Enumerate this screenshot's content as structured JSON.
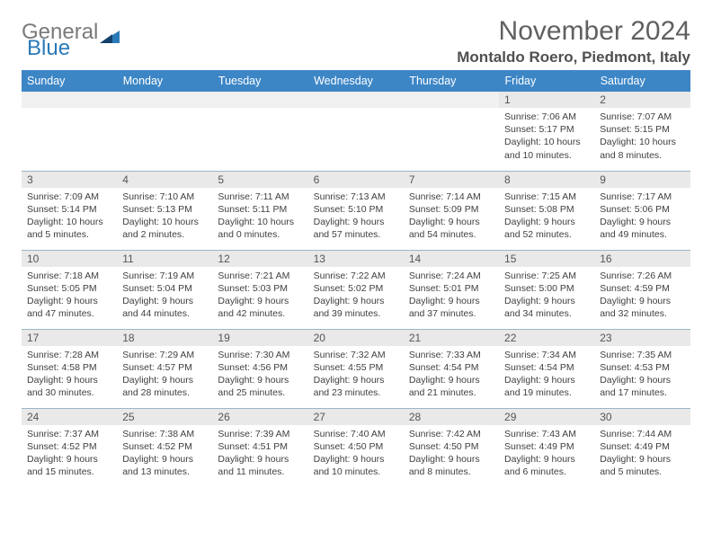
{
  "logo": {
    "line1": "General",
    "line2": "Blue"
  },
  "title": "November 2024",
  "location": "Montaldo Roero, Piedmont, Italy",
  "colors": {
    "header_bg": "#3d86c6",
    "header_text": "#ffffff",
    "daynum_bg": "#e9e9e9",
    "grid_line": "#9bb6c9",
    "logo_gray": "#7a7a7a",
    "logo_blue": "#2a7ab8"
  },
  "weekdays": [
    "Sunday",
    "Monday",
    "Tuesday",
    "Wednesday",
    "Thursday",
    "Friday",
    "Saturday"
  ],
  "weeks": [
    [
      {
        "n": "",
        "sunrise": "",
        "sunset": "",
        "daylight": ""
      },
      {
        "n": "",
        "sunrise": "",
        "sunset": "",
        "daylight": ""
      },
      {
        "n": "",
        "sunrise": "",
        "sunset": "",
        "daylight": ""
      },
      {
        "n": "",
        "sunrise": "",
        "sunset": "",
        "daylight": ""
      },
      {
        "n": "",
        "sunrise": "",
        "sunset": "",
        "daylight": ""
      },
      {
        "n": "1",
        "sunrise": "Sunrise: 7:06 AM",
        "sunset": "Sunset: 5:17 PM",
        "daylight": "Daylight: 10 hours and 10 minutes."
      },
      {
        "n": "2",
        "sunrise": "Sunrise: 7:07 AM",
        "sunset": "Sunset: 5:15 PM",
        "daylight": "Daylight: 10 hours and 8 minutes."
      }
    ],
    [
      {
        "n": "3",
        "sunrise": "Sunrise: 7:09 AM",
        "sunset": "Sunset: 5:14 PM",
        "daylight": "Daylight: 10 hours and 5 minutes."
      },
      {
        "n": "4",
        "sunrise": "Sunrise: 7:10 AM",
        "sunset": "Sunset: 5:13 PM",
        "daylight": "Daylight: 10 hours and 2 minutes."
      },
      {
        "n": "5",
        "sunrise": "Sunrise: 7:11 AM",
        "sunset": "Sunset: 5:11 PM",
        "daylight": "Daylight: 10 hours and 0 minutes."
      },
      {
        "n": "6",
        "sunrise": "Sunrise: 7:13 AM",
        "sunset": "Sunset: 5:10 PM",
        "daylight": "Daylight: 9 hours and 57 minutes."
      },
      {
        "n": "7",
        "sunrise": "Sunrise: 7:14 AM",
        "sunset": "Sunset: 5:09 PM",
        "daylight": "Daylight: 9 hours and 54 minutes."
      },
      {
        "n": "8",
        "sunrise": "Sunrise: 7:15 AM",
        "sunset": "Sunset: 5:08 PM",
        "daylight": "Daylight: 9 hours and 52 minutes."
      },
      {
        "n": "9",
        "sunrise": "Sunrise: 7:17 AM",
        "sunset": "Sunset: 5:06 PM",
        "daylight": "Daylight: 9 hours and 49 minutes."
      }
    ],
    [
      {
        "n": "10",
        "sunrise": "Sunrise: 7:18 AM",
        "sunset": "Sunset: 5:05 PM",
        "daylight": "Daylight: 9 hours and 47 minutes."
      },
      {
        "n": "11",
        "sunrise": "Sunrise: 7:19 AM",
        "sunset": "Sunset: 5:04 PM",
        "daylight": "Daylight: 9 hours and 44 minutes."
      },
      {
        "n": "12",
        "sunrise": "Sunrise: 7:21 AM",
        "sunset": "Sunset: 5:03 PM",
        "daylight": "Daylight: 9 hours and 42 minutes."
      },
      {
        "n": "13",
        "sunrise": "Sunrise: 7:22 AM",
        "sunset": "Sunset: 5:02 PM",
        "daylight": "Daylight: 9 hours and 39 minutes."
      },
      {
        "n": "14",
        "sunrise": "Sunrise: 7:24 AM",
        "sunset": "Sunset: 5:01 PM",
        "daylight": "Daylight: 9 hours and 37 minutes."
      },
      {
        "n": "15",
        "sunrise": "Sunrise: 7:25 AM",
        "sunset": "Sunset: 5:00 PM",
        "daylight": "Daylight: 9 hours and 34 minutes."
      },
      {
        "n": "16",
        "sunrise": "Sunrise: 7:26 AM",
        "sunset": "Sunset: 4:59 PM",
        "daylight": "Daylight: 9 hours and 32 minutes."
      }
    ],
    [
      {
        "n": "17",
        "sunrise": "Sunrise: 7:28 AM",
        "sunset": "Sunset: 4:58 PM",
        "daylight": "Daylight: 9 hours and 30 minutes."
      },
      {
        "n": "18",
        "sunrise": "Sunrise: 7:29 AM",
        "sunset": "Sunset: 4:57 PM",
        "daylight": "Daylight: 9 hours and 28 minutes."
      },
      {
        "n": "19",
        "sunrise": "Sunrise: 7:30 AM",
        "sunset": "Sunset: 4:56 PM",
        "daylight": "Daylight: 9 hours and 25 minutes."
      },
      {
        "n": "20",
        "sunrise": "Sunrise: 7:32 AM",
        "sunset": "Sunset: 4:55 PM",
        "daylight": "Daylight: 9 hours and 23 minutes."
      },
      {
        "n": "21",
        "sunrise": "Sunrise: 7:33 AM",
        "sunset": "Sunset: 4:54 PM",
        "daylight": "Daylight: 9 hours and 21 minutes."
      },
      {
        "n": "22",
        "sunrise": "Sunrise: 7:34 AM",
        "sunset": "Sunset: 4:54 PM",
        "daylight": "Daylight: 9 hours and 19 minutes."
      },
      {
        "n": "23",
        "sunrise": "Sunrise: 7:35 AM",
        "sunset": "Sunset: 4:53 PM",
        "daylight": "Daylight: 9 hours and 17 minutes."
      }
    ],
    [
      {
        "n": "24",
        "sunrise": "Sunrise: 7:37 AM",
        "sunset": "Sunset: 4:52 PM",
        "daylight": "Daylight: 9 hours and 15 minutes."
      },
      {
        "n": "25",
        "sunrise": "Sunrise: 7:38 AM",
        "sunset": "Sunset: 4:52 PM",
        "daylight": "Daylight: 9 hours and 13 minutes."
      },
      {
        "n": "26",
        "sunrise": "Sunrise: 7:39 AM",
        "sunset": "Sunset: 4:51 PM",
        "daylight": "Daylight: 9 hours and 11 minutes."
      },
      {
        "n": "27",
        "sunrise": "Sunrise: 7:40 AM",
        "sunset": "Sunset: 4:50 PM",
        "daylight": "Daylight: 9 hours and 10 minutes."
      },
      {
        "n": "28",
        "sunrise": "Sunrise: 7:42 AM",
        "sunset": "Sunset: 4:50 PM",
        "daylight": "Daylight: 9 hours and 8 minutes."
      },
      {
        "n": "29",
        "sunrise": "Sunrise: 7:43 AM",
        "sunset": "Sunset: 4:49 PM",
        "daylight": "Daylight: 9 hours and 6 minutes."
      },
      {
        "n": "30",
        "sunrise": "Sunrise: 7:44 AM",
        "sunset": "Sunset: 4:49 PM",
        "daylight": "Daylight: 9 hours and 5 minutes."
      }
    ]
  ]
}
